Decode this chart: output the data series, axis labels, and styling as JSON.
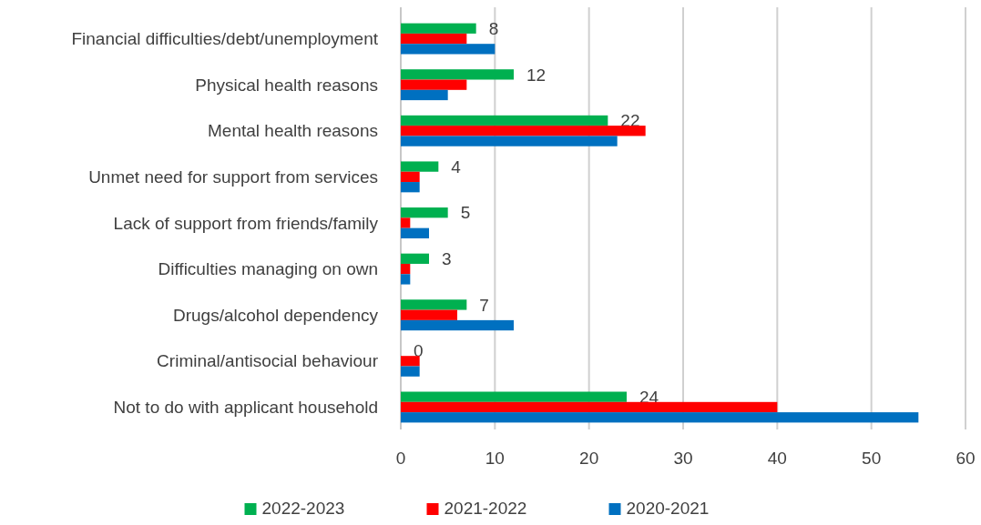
{
  "chart_data": {
    "type": "bar",
    "orientation": "horizontal",
    "categories": [
      "Financial difficulties/debt/unemployment",
      "Physical health reasons",
      "Mental health reasons",
      "Unmet need for support from services",
      "Lack of support from friends/family",
      "Difficulties managing on own",
      "Drugs/alcohol dependency",
      "Criminal/antisocial behaviour",
      "Not to do with applicant household"
    ],
    "series": [
      {
        "name": "2022-2023",
        "color": "#00b050",
        "values": [
          8,
          12,
          22,
          4,
          5,
          3,
          7,
          0,
          24
        ],
        "value_labels": [
          "8",
          "12",
          "22",
          "4",
          "5",
          "3",
          "7",
          "0",
          "24"
        ]
      },
      {
        "name": "2021-2022",
        "color": "#ff0000",
        "values": [
          7,
          7,
          26,
          2,
          1,
          1,
          6,
          2,
          40
        ]
      },
      {
        "name": "2020-2021",
        "color": "#0070c0",
        "values": [
          10,
          5,
          23,
          2,
          3,
          1,
          12,
          2,
          55
        ]
      }
    ],
    "xlim": [
      0,
      60
    ],
    "xticks": [
      0,
      10,
      20,
      30,
      40,
      50,
      60
    ],
    "grid": "x",
    "legend": "bottom"
  }
}
